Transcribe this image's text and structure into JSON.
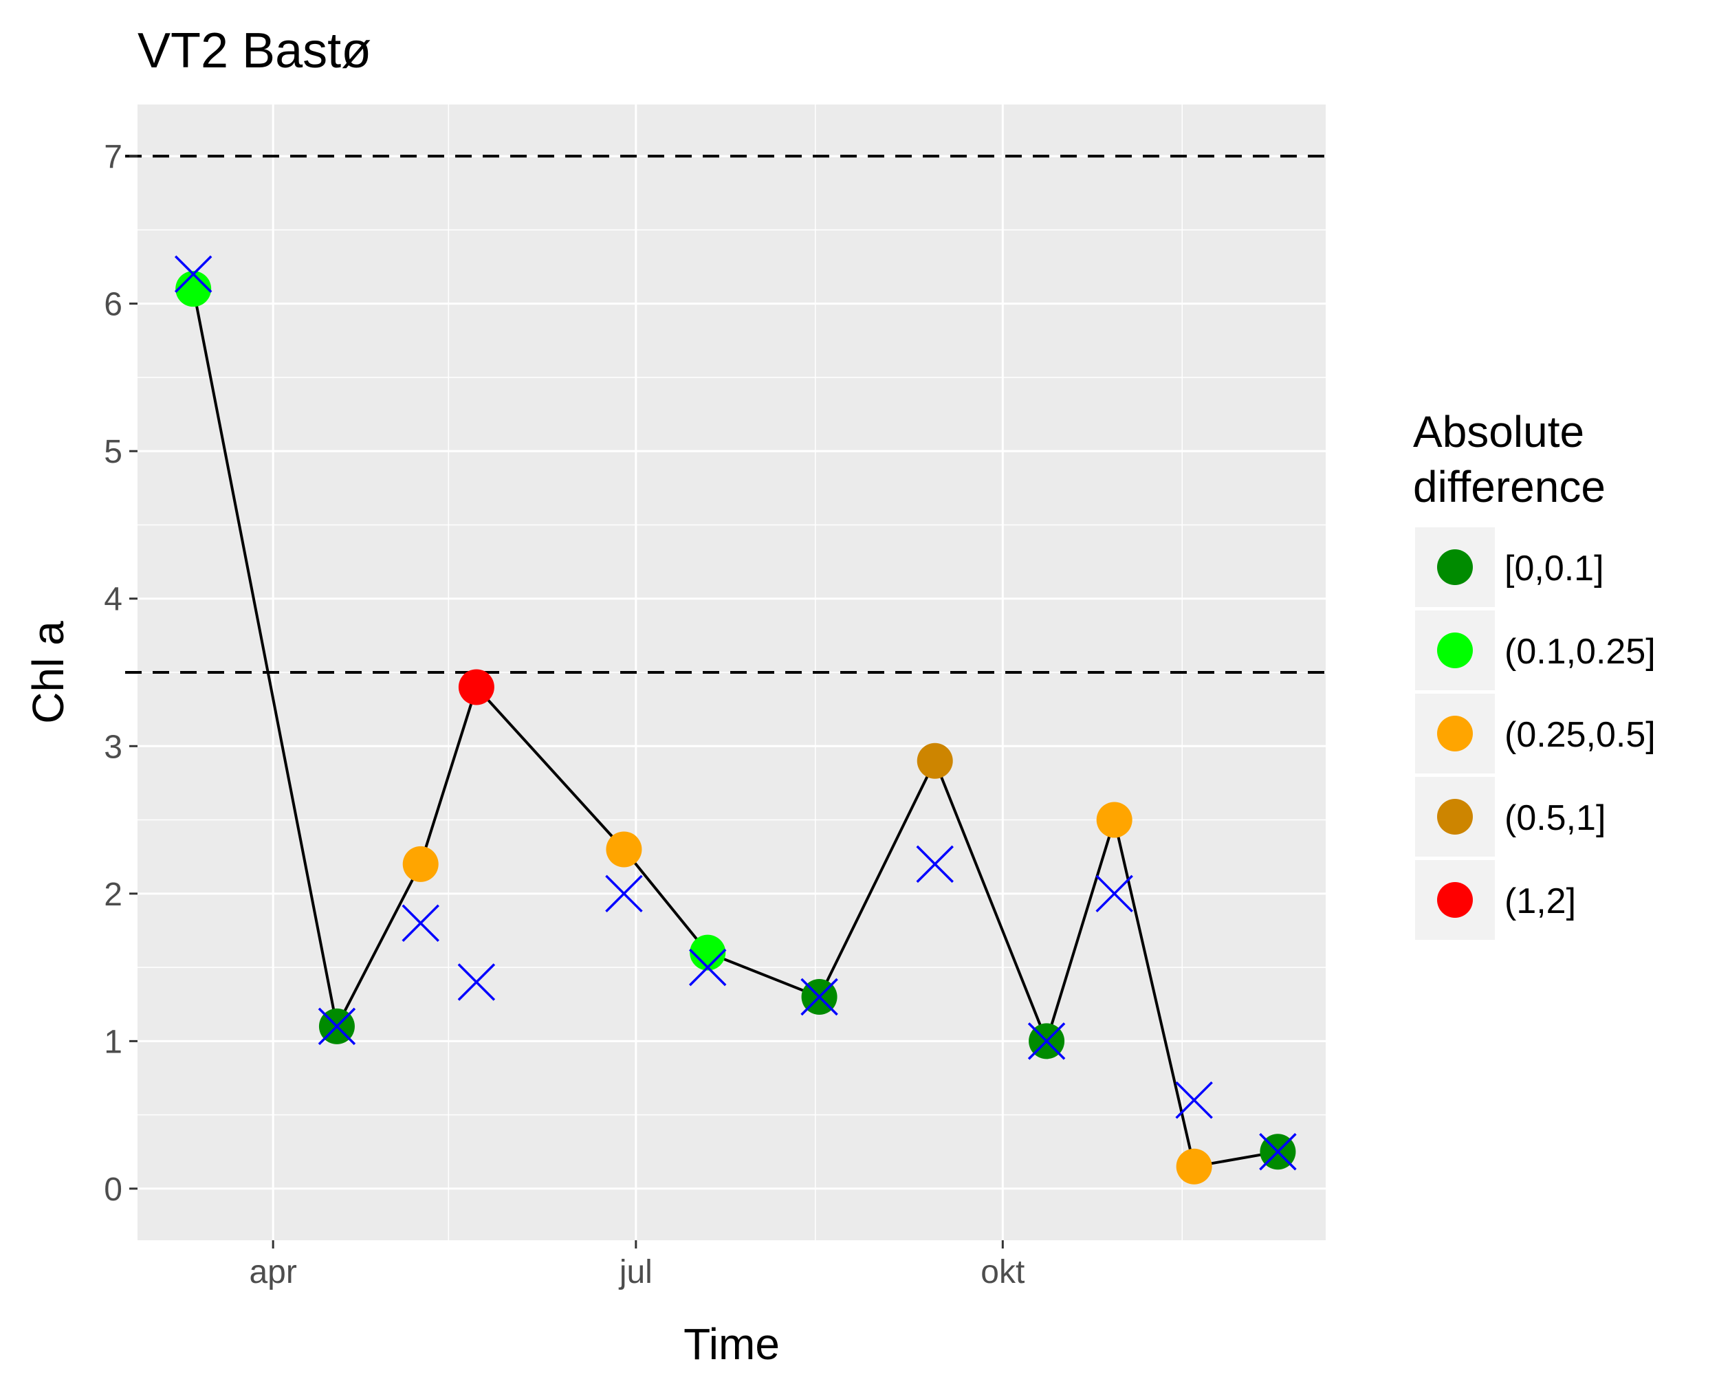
{
  "chart_data": {
    "type": "line",
    "title": "VT2 Bastø",
    "xlabel": "Time",
    "ylabel": "Chl a",
    "x_ticks": [
      "apr",
      "jul",
      "okt"
    ],
    "y_ticks": [
      "0",
      "1",
      "2",
      "3",
      "4",
      "5",
      "6",
      "7"
    ],
    "ylim": [
      -0.35,
      7.35
    ],
    "grid": true,
    "reference_lines": [
      3.5,
      7
    ],
    "series": [
      {
        "values": [
          {
            "x": "2019-03-12",
            "y": 6.1,
            "class": "(0.1,0.25]"
          },
          {
            "x": "2019-04-17",
            "y": 1.1,
            "class": "[0,0.1]"
          },
          {
            "x": "2019-05-08",
            "y": 2.2,
            "class": "(0.25,0.5]"
          },
          {
            "x": "2019-05-22",
            "y": 3.4,
            "class": "(1,2]"
          },
          {
            "x": "2019-06-28",
            "y": 2.3,
            "class": "(0.25,0.5]"
          },
          {
            "x": "2019-07-19",
            "y": 1.6,
            "class": "(0.1,0.25]"
          },
          {
            "x": "2019-08-16",
            "y": 1.3,
            "class": "[0,0.1]"
          },
          {
            "x": "2019-09-14",
            "y": 2.9,
            "class": "(0.5,1]"
          },
          {
            "x": "2019-10-12",
            "y": 1.0,
            "class": "[0,0.1]"
          },
          {
            "x": "2019-10-29",
            "y": 2.5,
            "class": "(0.25,0.5]"
          },
          {
            "x": "2019-11-18",
            "y": 0.15,
            "class": "(0.25,0.5]"
          },
          {
            "x": "2019-12-09",
            "y": 0.25,
            "class": "[0,0.1]"
          }
        ]
      },
      {
        "marker": "x",
        "values": [
          {
            "x": "2019-03-12",
            "y": 6.2
          },
          {
            "x": "2019-04-17",
            "y": 1.1
          },
          {
            "x": "2019-05-08",
            "y": 1.8
          },
          {
            "x": "2019-05-22",
            "y": 1.4
          },
          {
            "x": "2019-06-28",
            "y": 2.0
          },
          {
            "x": "2019-07-19",
            "y": 1.5
          },
          {
            "x": "2019-08-16",
            "y": 1.3
          },
          {
            "x": "2019-09-14",
            "y": 2.2
          },
          {
            "x": "2019-10-12",
            "y": 1.0
          },
          {
            "x": "2019-10-29",
            "y": 2.0
          },
          {
            "x": "2019-11-18",
            "y": 0.6
          },
          {
            "x": "2019-12-09",
            "y": 0.25
          }
        ]
      }
    ],
    "legend": {
      "title": [
        "Absolute",
        "difference"
      ],
      "placement": "right",
      "items": [
        {
          "label": "[0,0.1]",
          "color": "#008b00"
        },
        {
          "label": "(0.1,0.25]",
          "color": "#00ff00"
        },
        {
          "label": "(0.25,0.5]",
          "color": "#ffa500"
        },
        {
          "label": "(0.5,1]",
          "color": "#cd8500"
        },
        {
          "label": "(1,2]",
          "color": "#ff0000"
        }
      ]
    },
    "colors": {
      "panel": "#ebebeb",
      "grid": "#ffffff",
      "line": "#000000",
      "x_marker": "#0000ff",
      "reference_line": "#000000"
    }
  }
}
